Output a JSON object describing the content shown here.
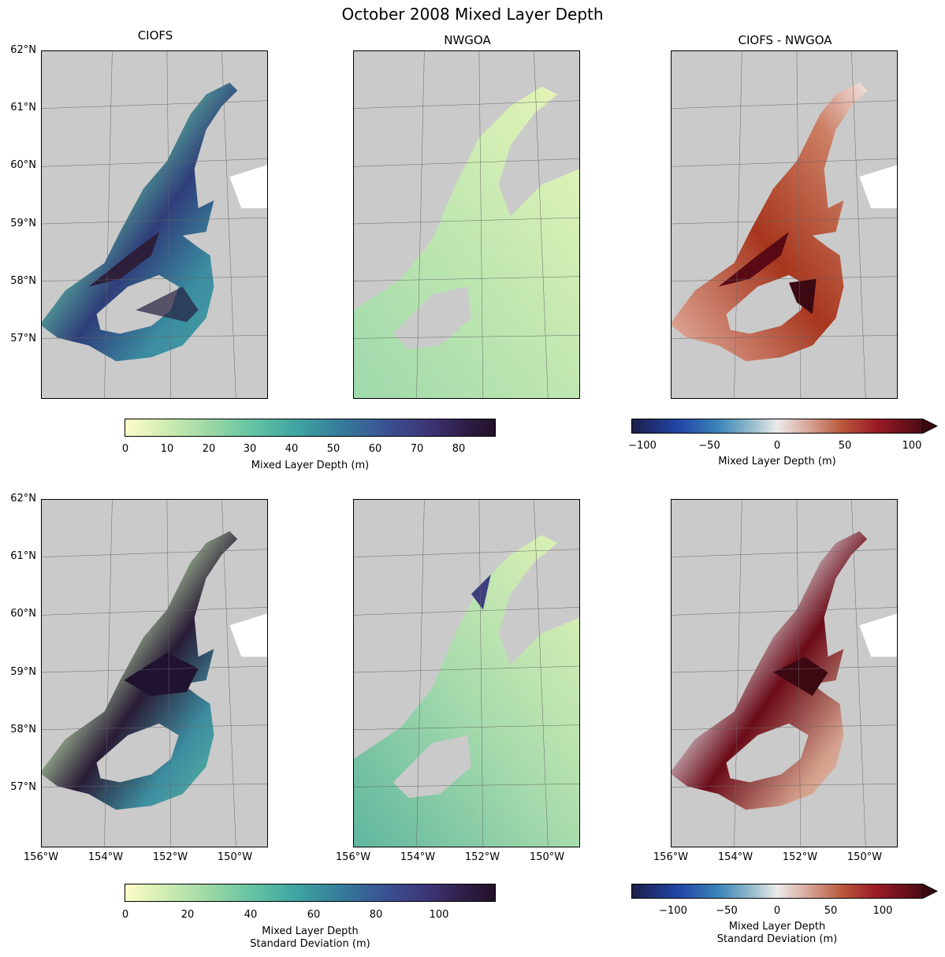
{
  "figure": {
    "title": "October 2008 Mixed Layer Depth"
  },
  "columns": [
    "CIOFS",
    "NWGOA",
    "CIOFS - NWGOA"
  ],
  "axes": {
    "lat_ticks": [
      "62°N",
      "61°N",
      "60°N",
      "59°N",
      "58°N",
      "57°N"
    ],
    "lon_ticks": [
      "156°W",
      "154°W",
      "152°W",
      "150°W"
    ]
  },
  "colorbars": {
    "mean_seq": {
      "ticks": [
        "0",
        "10",
        "20",
        "30",
        "40",
        "50",
        "60",
        "70",
        "80"
      ],
      "label": "Mixed Layer Depth (m)",
      "range": [
        0,
        89
      ]
    },
    "mean_div": {
      "ticks": [
        "−100",
        "−50",
        "0",
        "50",
        "100"
      ],
      "label": "Mixed Layer Depth (m)",
      "range": [
        -115,
        115
      ]
    },
    "std_seq": {
      "ticks": [
        "0",
        "20",
        "40",
        "60",
        "80",
        "100"
      ],
      "label_line1": "Mixed Layer Depth",
      "label_line2": "Standard Deviation (m)",
      "range": [
        0,
        117
      ]
    },
    "std_div": {
      "ticks": [
        "−100",
        "−50",
        "0",
        "50",
        "100"
      ],
      "label_line1": "Mixed Layer Depth",
      "label_line2": "Standard Deviation (m)",
      "range": [
        -135,
        135
      ]
    }
  },
  "colors": {
    "land": "#cacaca",
    "seq_low": "#fdfdc9",
    "seq_mid": "#5fbfa0",
    "seq_high": "#291a34",
    "div_low": "#1b1f4a",
    "div_mid": "#eceaea",
    "div_high": "#3c0912"
  }
}
